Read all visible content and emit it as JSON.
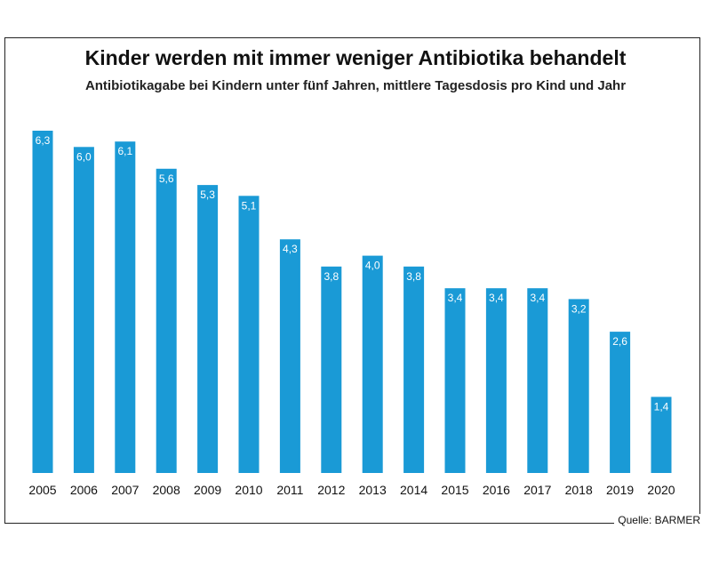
{
  "chart_data": {
    "type": "bar",
    "title": "Kinder werden mit immer weniger Antibiotika behandelt",
    "subtitle": "Antibiotikagabe bei Kindern unter fünf Jahren, mittlere Tagesdosis pro Kind und Jahr",
    "categories": [
      "2005",
      "2006",
      "2007",
      "2008",
      "2009",
      "2010",
      "2011",
      "2012",
      "2013",
      "2014",
      "2015",
      "2016",
      "2017",
      "2018",
      "2019",
      "2020"
    ],
    "values": [
      6.3,
      6.0,
      6.1,
      5.6,
      5.3,
      5.1,
      4.3,
      3.8,
      4.0,
      3.8,
      3.4,
      3.4,
      3.4,
      3.2,
      2.6,
      1.4
    ],
    "value_labels": [
      "6,3",
      "6,0",
      "6,1",
      "5,6",
      "5,3",
      "5,1",
      "4,3",
      "3,8",
      "4,0",
      "3,8",
      "3,4",
      "3,4",
      "3,4",
      "3,2",
      "2,6",
      "1,4"
    ],
    "xlabel": "",
    "ylabel": "",
    "ylim": [
      0,
      6.3
    ],
    "grid": false,
    "bar_color": "#1a9ad6",
    "label_color": "#ffffff",
    "source": "Quelle: BARMER"
  }
}
